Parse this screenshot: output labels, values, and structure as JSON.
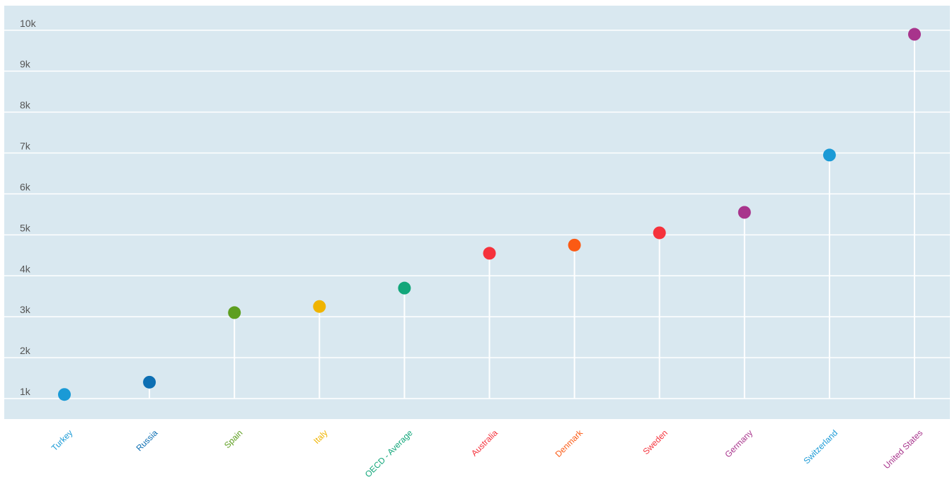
{
  "chart_data": {
    "type": "lollipop",
    "categories": [
      "Turkey",
      "Russia",
      "Spain",
      "Italy",
      "OECD - Average",
      "Australia",
      "Denmark",
      "Sweden",
      "Germany",
      "Switzerland",
      "United States"
    ],
    "values": [
      1100,
      1400,
      3100,
      3250,
      3700,
      4550,
      4750,
      5050,
      5550,
      6950,
      9900
    ],
    "colors": [
      "#1a9ad6",
      "#0d6fb3",
      "#5d9e1f",
      "#f0b400",
      "#12a67a",
      "#f5323c",
      "#fb5a14",
      "#f5323c",
      "#a8348c",
      "#1a9ad6",
      "#a8348c"
    ],
    "ylim": [
      500,
      10600
    ],
    "yticks": [
      1000,
      2000,
      3000,
      4000,
      5000,
      6000,
      7000,
      8000,
      9000,
      10000
    ],
    "ytick_labels": [
      "1k",
      "2k",
      "3k",
      "4k",
      "5k",
      "6k",
      "7k",
      "8k",
      "9k",
      "10k"
    ],
    "grid": true,
    "plot_background": "#d9e8f0",
    "title": "",
    "xlabel": "",
    "ylabel": ""
  }
}
